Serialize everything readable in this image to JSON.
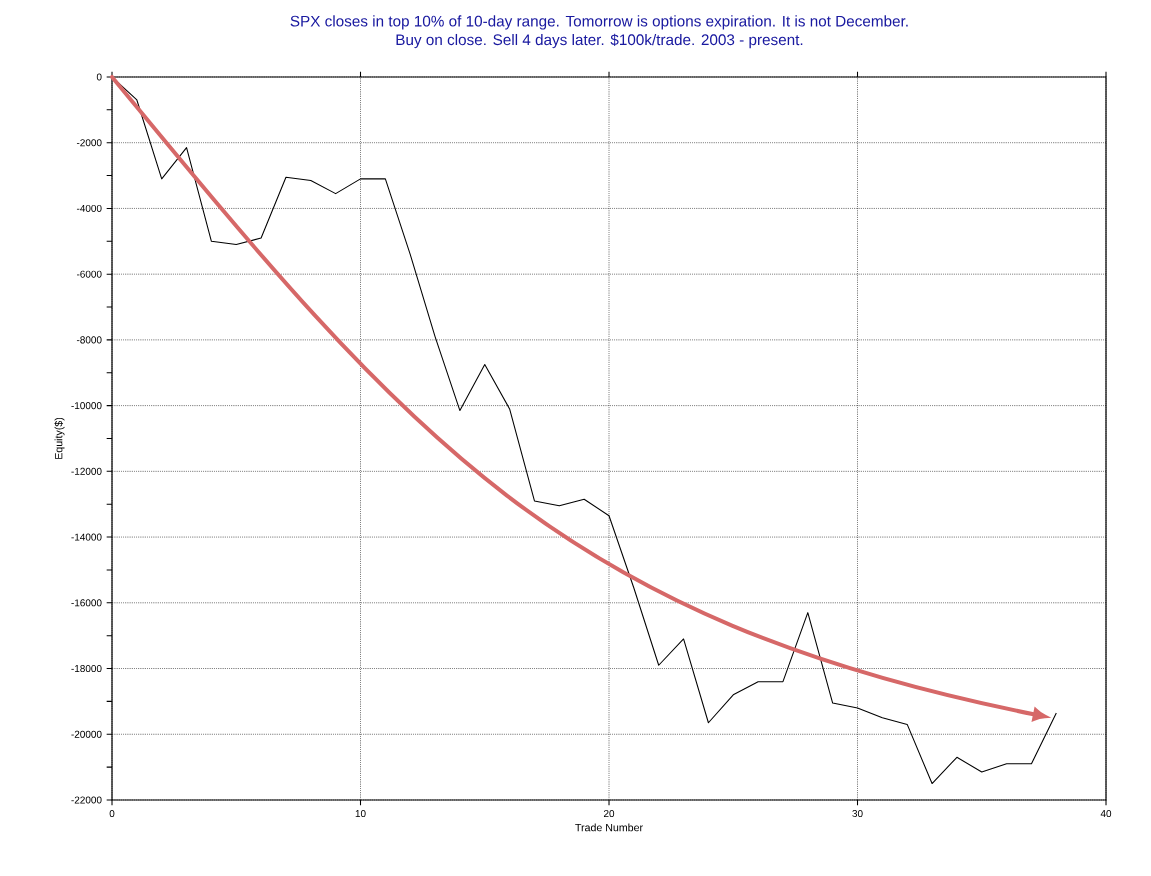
{
  "chart_data": {
    "type": "line",
    "title": "SPX closes in top 10% of 10-day range. Tomorrow is options expiration. It is not December.",
    "subtitle": "Buy on close. Sell 4 days later. $100k/trade. 2003 - present.",
    "xlabel": "Trade Number",
    "ylabel": "Equity($)",
    "x": [
      0,
      1,
      2,
      3,
      4,
      5,
      6,
      7,
      8,
      9,
      10,
      11,
      12,
      13,
      14,
      15,
      16,
      17,
      18,
      19,
      20,
      21,
      22,
      23,
      24,
      25,
      26,
      27,
      28,
      29,
      30,
      31,
      32,
      33,
      34,
      35,
      36,
      37,
      38
    ],
    "series": [
      {
        "color": "#000000",
        "values": [
          0,
          -700,
          -3100,
          -2150,
          -5000,
          -5100,
          -4900,
          -3050,
          -3150,
          -3550,
          -3100,
          -3100,
          -5400,
          -7900,
          -10150,
          -8750,
          -10100,
          -12900,
          -13050,
          -12850,
          -13350,
          -15550,
          -17900,
          -17100,
          -19650,
          -18800,
          -18400,
          -18400,
          -16300,
          -19050,
          -19200,
          -19500,
          -19700,
          -21500,
          -20700,
          -21150,
          -20900,
          -20900,
          -19350
        ]
      }
    ],
    "xlim": [
      0,
      40
    ],
    "ylim": [
      -22000,
      0
    ],
    "xticks": [
      0,
      10,
      20,
      30,
      40
    ],
    "yticks": [
      -22000,
      -20000,
      -18000,
      -16000,
      -14000,
      -12000,
      -10000,
      -8000,
      -6000,
      -4000,
      -2000,
      0
    ],
    "grid": true,
    "line_style": "solid",
    "marker": "none"
  }
}
